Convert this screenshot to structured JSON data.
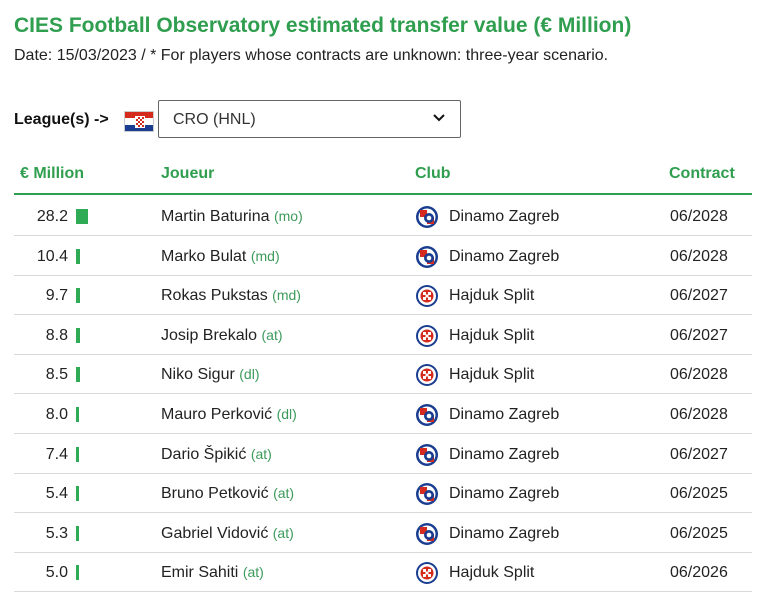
{
  "title": "CIES Football Observatory estimated transfer value (€ Million)",
  "subtitle": "Date: 15/03/2023 / * For players whose contracts are unknown: three-year scenario.",
  "league": {
    "label": "League(s) ->",
    "flag_icon": "croatia-flag-icon",
    "selected": "CRO (HNL)"
  },
  "table": {
    "headers": {
      "value": "€ Million",
      "player": "Joueur",
      "club": "Club",
      "contract": "Contract"
    },
    "max_value": 28.2,
    "rows": [
      {
        "value": "28.2",
        "amount": 28.2,
        "name": "Martin Baturina",
        "pos": "(mo)",
        "club": "Dinamo Zagreb",
        "club_icon": "dinamo-zagreb-crest-icon",
        "contract": "06/2028"
      },
      {
        "value": "10.4",
        "amount": 10.4,
        "name": "Marko Bulat",
        "pos": "(md)",
        "club": "Dinamo Zagreb",
        "club_icon": "dinamo-zagreb-crest-icon",
        "contract": "06/2028"
      },
      {
        "value": "9.7",
        "amount": 9.7,
        "name": "Rokas Pukstas",
        "pos": "(md)",
        "club": "Hajduk Split",
        "club_icon": "hajduk-split-crest-icon",
        "contract": "06/2027"
      },
      {
        "value": "8.8",
        "amount": 8.8,
        "name": "Josip Brekalo",
        "pos": "(at)",
        "club": "Hajduk Split",
        "club_icon": "hajduk-split-crest-icon",
        "contract": "06/2027"
      },
      {
        "value": "8.5",
        "amount": 8.5,
        "name": "Niko Sigur",
        "pos": "(dl)",
        "club": "Hajduk Split",
        "club_icon": "hajduk-split-crest-icon",
        "contract": "06/2028"
      },
      {
        "value": "8.0",
        "amount": 8.0,
        "name": "Mauro Perković",
        "pos": "(dl)",
        "club": "Dinamo Zagreb",
        "club_icon": "dinamo-zagreb-crest-icon",
        "contract": "06/2028"
      },
      {
        "value": "7.4",
        "amount": 7.4,
        "name": "Dario Špikić",
        "pos": "(at)",
        "club": "Dinamo Zagreb",
        "club_icon": "dinamo-zagreb-crest-icon",
        "contract": "06/2027"
      },
      {
        "value": "5.4",
        "amount": 5.4,
        "name": "Bruno Petković",
        "pos": "(at)",
        "club": "Dinamo Zagreb",
        "club_icon": "dinamo-zagreb-crest-icon",
        "contract": "06/2025"
      },
      {
        "value": "5.3",
        "amount": 5.3,
        "name": "Gabriel Vidović",
        "pos": "(at)",
        "club": "Dinamo Zagreb",
        "club_icon": "dinamo-zagreb-crest-icon",
        "contract": "06/2025"
      },
      {
        "value": "5.0",
        "amount": 5.0,
        "name": "Emir Sahiti",
        "pos": "(at)",
        "club": "Hajduk Split",
        "club_icon": "hajduk-split-crest-icon",
        "contract": "06/2026"
      }
    ]
  },
  "colors": {
    "accent": "#2f9e4f",
    "bar": "#2faa55",
    "position_text": "#3c9a5a",
    "dinamo_blue": "#1a3d8f",
    "hajduk_red": "#d52b1e"
  }
}
